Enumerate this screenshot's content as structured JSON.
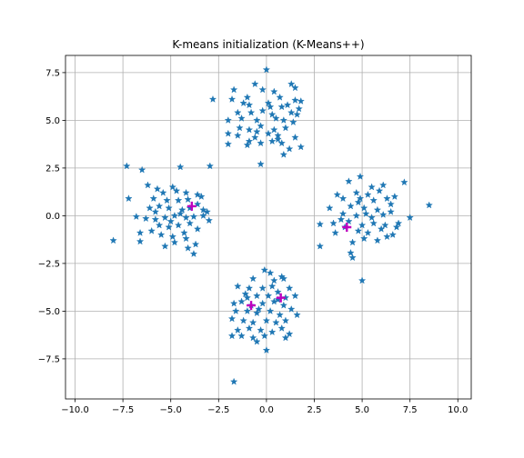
{
  "chart_data": {
    "type": "scatter",
    "title": "K-means initialization (K-Means++)",
    "xlabel": "",
    "ylabel": "",
    "xlim": [
      -10.5,
      10.7
    ],
    "ylim": [
      -9.6,
      8.4
    ],
    "xticks": [
      -10.0,
      -7.5,
      -5.0,
      -2.5,
      0.0,
      2.5,
      5.0,
      7.5,
      10.0
    ],
    "xtick_labels": [
      "−10.0",
      "−7.5",
      "−5.0",
      "−2.5",
      "0.0",
      "2.5",
      "5.0",
      "7.5",
      "10.0"
    ],
    "yticks": [
      -7.5,
      -5.0,
      -2.5,
      0.0,
      2.5,
      5.0,
      7.5
    ],
    "ytick_labels": [
      "−7.5",
      "−5.0",
      "−2.5",
      "0.0",
      "2.5",
      "5.0",
      "7.5"
    ],
    "grid": true,
    "series": [
      {
        "marker": "star",
        "color": "#1f77b4",
        "points": [
          [
            0.0,
            7.65
          ],
          [
            -1.7,
            6.6
          ],
          [
            -0.6,
            6.9
          ],
          [
            -0.2,
            6.6
          ],
          [
            0.4,
            6.5
          ],
          [
            1.3,
            6.9
          ],
          [
            1.5,
            6.7
          ],
          [
            -1.8,
            6.1
          ],
          [
            -2.8,
            6.1
          ],
          [
            -1.2,
            5.9
          ],
          [
            1.8,
            6.0
          ],
          [
            1.5,
            6.05
          ],
          [
            -0.9,
            5.8
          ],
          [
            0.1,
            5.9
          ],
          [
            0.8,
            5.7
          ],
          [
            1.1,
            5.8
          ],
          [
            -1.5,
            5.4
          ],
          [
            -0.8,
            5.4
          ],
          [
            -0.2,
            5.5
          ],
          [
            0.3,
            5.3
          ],
          [
            1.3,
            5.4
          ],
          [
            1.6,
            5.3
          ],
          [
            -2.0,
            5.0
          ],
          [
            -1.3,
            5.1
          ],
          [
            -0.5,
            5.0
          ],
          [
            0.5,
            5.1
          ],
          [
            0.9,
            5.0
          ],
          [
            1.4,
            4.9
          ],
          [
            -1.4,
            4.6
          ],
          [
            -0.9,
            4.5
          ],
          [
            -0.3,
            4.7
          ],
          [
            0.4,
            4.5
          ],
          [
            1.0,
            4.6
          ],
          [
            -2.0,
            4.3
          ],
          [
            -1.5,
            4.2
          ],
          [
            -0.6,
            4.1
          ],
          [
            0.1,
            4.3
          ],
          [
            0.6,
            4.2
          ],
          [
            1.5,
            4.1
          ],
          [
            -0.9,
            3.9
          ],
          [
            -0.3,
            3.8
          ],
          [
            0.3,
            3.9
          ],
          [
            0.8,
            3.8
          ],
          [
            1.2,
            3.5
          ],
          [
            1.8,
            3.6
          ],
          [
            -2.0,
            3.75
          ],
          [
            -1.0,
            3.7
          ],
          [
            0.9,
            3.2
          ],
          [
            -0.3,
            2.7
          ],
          [
            0.6,
            4.0
          ],
          [
            -0.5,
            4.4
          ],
          [
            0.2,
            5.7
          ],
          [
            -1.0,
            6.2
          ],
          [
            0.7,
            6.2
          ],
          [
            1.7,
            5.6
          ],
          [
            -7.3,
            2.6
          ],
          [
            -6.5,
            2.4
          ],
          [
            -4.5,
            2.55
          ],
          [
            -2.95,
            2.6
          ],
          [
            -6.2,
            1.6
          ],
          [
            -5.7,
            1.4
          ],
          [
            -5.4,
            1.2
          ],
          [
            -4.9,
            1.5
          ],
          [
            -4.7,
            1.3
          ],
          [
            -4.2,
            1.2
          ],
          [
            -3.6,
            1.1
          ],
          [
            -3.4,
            1.0
          ],
          [
            -7.2,
            0.9
          ],
          [
            -5.9,
            0.9
          ],
          [
            -5.2,
            0.8
          ],
          [
            -4.6,
            0.8
          ],
          [
            -4.1,
            0.85
          ],
          [
            -3.6,
            0.6
          ],
          [
            -5.6,
            0.5
          ],
          [
            -5.1,
            0.4
          ],
          [
            -4.4,
            0.3
          ],
          [
            -4.0,
            0.4
          ],
          [
            -3.3,
            0.3
          ],
          [
            -3.1,
            0.2
          ],
          [
            -6.8,
            -0.05
          ],
          [
            -6.3,
            -0.15
          ],
          [
            -5.8,
            -0.2
          ],
          [
            -5.3,
            -0.1
          ],
          [
            -4.8,
            0.0
          ],
          [
            -4.2,
            -0.1
          ],
          [
            -3.8,
            -0.05
          ],
          [
            -3.0,
            -0.25
          ],
          [
            -5.6,
            -0.5
          ],
          [
            -5.1,
            -0.6
          ],
          [
            -4.6,
            -0.5
          ],
          [
            -4.0,
            -0.4
          ],
          [
            -3.6,
            -0.7
          ],
          [
            -6.6,
            -0.9
          ],
          [
            -6.0,
            -0.8
          ],
          [
            -5.5,
            -1.0
          ],
          [
            -4.9,
            -1.1
          ],
          [
            -4.3,
            -0.9
          ],
          [
            -5.3,
            -1.6
          ],
          [
            -4.8,
            -1.4
          ],
          [
            -4.1,
            -1.7
          ],
          [
            -3.7,
            -1.5
          ],
          [
            -3.8,
            -2.0
          ],
          [
            -6.6,
            -1.35
          ],
          [
            -8.0,
            -1.3
          ],
          [
            -5.0,
            -0.3
          ],
          [
            -4.5,
            0.1
          ],
          [
            -5.8,
            0.2
          ],
          [
            -4.2,
            -1.2
          ],
          [
            -3.3,
            0.0
          ],
          [
            -6.1,
            0.4
          ],
          [
            4.9,
            2.05
          ],
          [
            7.2,
            1.75
          ],
          [
            4.3,
            1.8
          ],
          [
            5.5,
            1.5
          ],
          [
            6.1,
            1.6
          ],
          [
            5.9,
            1.3
          ],
          [
            4.7,
            1.2
          ],
          [
            5.3,
            1.1
          ],
          [
            6.7,
            1.0
          ],
          [
            3.7,
            1.1
          ],
          [
            4.0,
            0.9
          ],
          [
            4.8,
            0.7
          ],
          [
            5.6,
            0.8
          ],
          [
            6.3,
            0.9
          ],
          [
            8.5,
            0.55
          ],
          [
            3.3,
            0.4
          ],
          [
            4.4,
            0.5
          ],
          [
            5.1,
            0.4
          ],
          [
            5.8,
            0.3
          ],
          [
            6.5,
            0.2
          ],
          [
            4.0,
            0.1
          ],
          [
            4.7,
            0.0
          ],
          [
            5.5,
            -0.1
          ],
          [
            6.1,
            0.05
          ],
          [
            7.5,
            -0.1
          ],
          [
            2.8,
            -0.45
          ],
          [
            3.5,
            -0.4
          ],
          [
            4.3,
            -0.3
          ],
          [
            5.0,
            -0.5
          ],
          [
            5.6,
            -0.4
          ],
          [
            6.2,
            -0.5
          ],
          [
            6.8,
            -0.6
          ],
          [
            3.6,
            -0.9
          ],
          [
            4.8,
            -0.8
          ],
          [
            5.3,
            -0.9
          ],
          [
            6.0,
            -0.7
          ],
          [
            6.6,
            -1.0
          ],
          [
            4.5,
            -1.4
          ],
          [
            5.1,
            -1.2
          ],
          [
            6.3,
            -1.1
          ],
          [
            4.4,
            -1.95
          ],
          [
            4.5,
            -2.2
          ],
          [
            2.8,
            -1.6
          ],
          [
            5.0,
            -3.4
          ],
          [
            6.9,
            -0.4
          ],
          [
            5.2,
            0.1
          ],
          [
            4.1,
            -0.6
          ],
          [
            5.8,
            -1.3
          ],
          [
            4.9,
            0.9
          ],
          [
            6.5,
            0.6
          ],
          [
            3.9,
            -0.2
          ],
          [
            -0.1,
            -2.85
          ],
          [
            0.2,
            -3.0
          ],
          [
            -0.7,
            -3.3
          ],
          [
            0.4,
            -3.4
          ],
          [
            0.9,
            -3.3
          ],
          [
            0.8,
            -3.2
          ],
          [
            -1.5,
            -3.7
          ],
          [
            -0.9,
            -3.8
          ],
          [
            -0.2,
            -3.8
          ],
          [
            0.3,
            -3.7
          ],
          [
            1.2,
            -3.8
          ],
          [
            -1.1,
            -4.1
          ],
          [
            -0.5,
            -4.2
          ],
          [
            0.1,
            -4.2
          ],
          [
            0.6,
            -4.0
          ],
          [
            1.0,
            -4.3
          ],
          [
            1.5,
            -4.2
          ],
          [
            -1.7,
            -4.6
          ],
          [
            -1.3,
            -4.5
          ],
          [
            -0.8,
            -4.7
          ],
          [
            -0.2,
            -4.6
          ],
          [
            0.4,
            -4.5
          ],
          [
            0.9,
            -4.7
          ],
          [
            1.3,
            -4.9
          ],
          [
            -1.6,
            -5.0
          ],
          [
            -1.0,
            -5.0
          ],
          [
            -0.5,
            -5.1
          ],
          [
            0.2,
            -5.0
          ],
          [
            0.7,
            -5.2
          ],
          [
            1.6,
            -5.2
          ],
          [
            -1.8,
            -5.4
          ],
          [
            -1.2,
            -5.5
          ],
          [
            -0.7,
            -5.6
          ],
          [
            0.0,
            -5.5
          ],
          [
            0.5,
            -5.6
          ],
          [
            1.0,
            -5.5
          ],
          [
            -1.5,
            -6.0
          ],
          [
            -0.9,
            -5.9
          ],
          [
            -0.3,
            -6.0
          ],
          [
            0.3,
            -6.1
          ],
          [
            0.8,
            -5.9
          ],
          [
            -1.3,
            -6.3
          ],
          [
            -0.7,
            -6.4
          ],
          [
            -0.1,
            -6.3
          ],
          [
            1.2,
            -6.2
          ],
          [
            -1.8,
            -6.3
          ],
          [
            -0.5,
            -6.6
          ],
          [
            0.0,
            -7.05
          ],
          [
            -1.7,
            -8.7
          ],
          [
            0.6,
            -4.4
          ],
          [
            -0.4,
            -4.9
          ],
          [
            1.0,
            -6.4
          ],
          [
            -1.0,
            -4.3
          ]
        ]
      },
      {
        "marker": "plus",
        "color": "#bf00bf",
        "points": [
          [
            -3.9,
            0.5
          ],
          [
            4.2,
            -0.6
          ],
          [
            -0.8,
            -4.7
          ],
          [
            0.75,
            -4.3
          ]
        ]
      }
    ]
  }
}
